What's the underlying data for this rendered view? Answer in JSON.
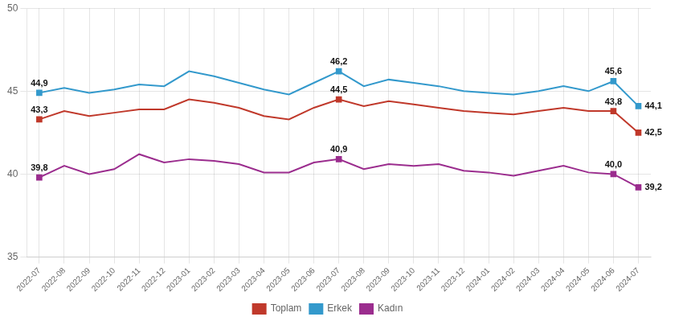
{
  "chart_data": {
    "type": "line",
    "categories": [
      "2022-07",
      "2022-08",
      "2022-09",
      "2022-10",
      "2022-11",
      "2022-12",
      "2023-01",
      "2023-02",
      "2023-03",
      "2023-04",
      "2023-05",
      "2023-06",
      "2023-07",
      "2023-08",
      "2023-09",
      "2023-10",
      "2023-11",
      "2023-12",
      "2024-01",
      "2024-02",
      "2024-03",
      "2024-04",
      "2024-05",
      "2024-06",
      "2024-07"
    ],
    "series": [
      {
        "name": "Toplam",
        "color": "#c0392b",
        "values": [
          43.3,
          43.8,
          43.5,
          43.7,
          43.9,
          43.9,
          44.5,
          44.3,
          44.0,
          43.5,
          43.3,
          44.0,
          44.5,
          44.1,
          44.4,
          44.2,
          44.0,
          43.8,
          43.7,
          43.6,
          43.8,
          44.0,
          43.8,
          43.8,
          42.5
        ],
        "value_labels": [
          "43,3",
          null,
          null,
          null,
          null,
          null,
          null,
          null,
          null,
          null,
          null,
          null,
          "44,5",
          null,
          null,
          null,
          null,
          null,
          null,
          null,
          null,
          null,
          null,
          "43,8",
          "42,5"
        ]
      },
      {
        "name": "Erkek",
        "color": "#3399cc",
        "values": [
          44.9,
          45.2,
          44.9,
          45.1,
          45.4,
          45.3,
          46.2,
          45.9,
          45.5,
          45.1,
          44.8,
          45.5,
          46.2,
          45.3,
          45.7,
          45.5,
          45.3,
          45.0,
          44.9,
          44.8,
          45.0,
          45.3,
          45.0,
          45.6,
          44.1
        ],
        "value_labels": [
          "44,9",
          null,
          null,
          null,
          null,
          null,
          null,
          null,
          null,
          null,
          null,
          null,
          "46,2",
          null,
          null,
          null,
          null,
          null,
          null,
          null,
          null,
          null,
          null,
          "45,6",
          "44,1"
        ]
      },
      {
        "name": "Kadın",
        "color": "#9b2d8e",
        "values": [
          39.8,
          40.5,
          40.0,
          40.3,
          41.2,
          40.7,
          40.9,
          40.8,
          40.6,
          40.1,
          40.1,
          40.7,
          40.9,
          40.3,
          40.6,
          40.5,
          40.6,
          40.2,
          40.1,
          39.9,
          40.2,
          40.5,
          40.1,
          40.0,
          39.2
        ],
        "value_labels": [
          "39,8",
          null,
          null,
          null,
          null,
          null,
          null,
          null,
          null,
          null,
          null,
          null,
          "40,9",
          null,
          null,
          null,
          null,
          null,
          null,
          null,
          null,
          null,
          null,
          "40,0",
          "39,2"
        ]
      }
    ],
    "ylim": [
      35,
      50
    ],
    "yticks": [
      35,
      40,
      45,
      50
    ],
    "grid": true,
    "legend": "bottom",
    "marker": "square"
  }
}
